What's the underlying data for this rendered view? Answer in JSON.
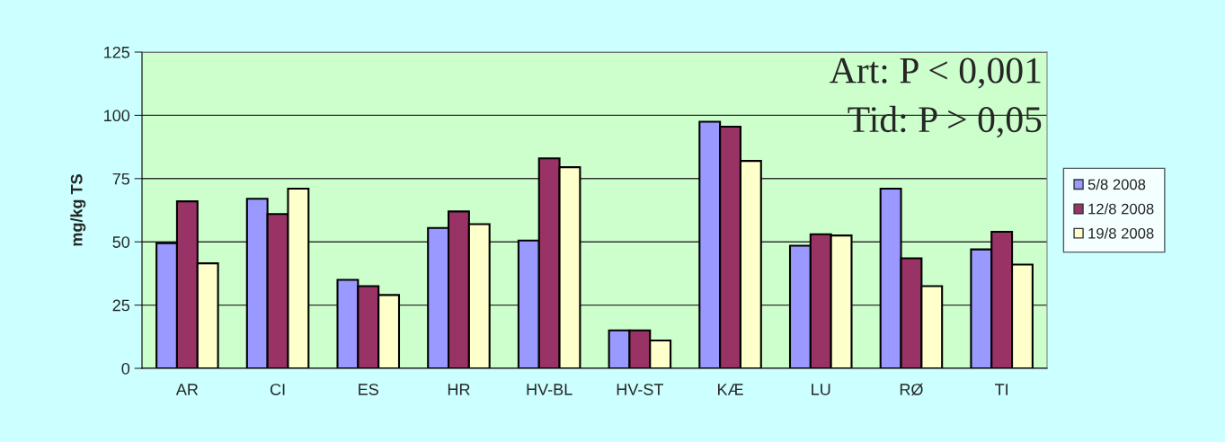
{
  "chart_data": {
    "type": "bar",
    "ylabel": "mg/kg TS",
    "categories": [
      "AR",
      "CI",
      "ES",
      "HR",
      "HV-BL",
      "HV-ST",
      "KÆ",
      "LU",
      "RØ",
      "TI"
    ],
    "series": [
      {
        "name": "5/8 2008",
        "color": "#9999ff",
        "values": [
          49.5,
          67,
          35,
          55.5,
          50.5,
          15,
          97.5,
          48.5,
          71,
          47
        ]
      },
      {
        "name": "12/8 2008",
        "color": "#993366",
        "values": [
          66,
          61,
          32.5,
          62,
          83,
          15,
          95.5,
          53,
          43.5,
          54
        ]
      },
      {
        "name": "19/8 2008",
        "color": "#ffffcc",
        "values": [
          41.5,
          71,
          29,
          57,
          79.5,
          11,
          82,
          52.5,
          32.5,
          41
        ]
      }
    ],
    "ylim": [
      0,
      125
    ],
    "yticks": [
      0,
      25,
      50,
      75,
      100,
      125
    ],
    "grid": "y",
    "legend": "right",
    "annotations": [
      "Art: P < 0,001",
      "Tid: P > 0,05"
    ]
  }
}
